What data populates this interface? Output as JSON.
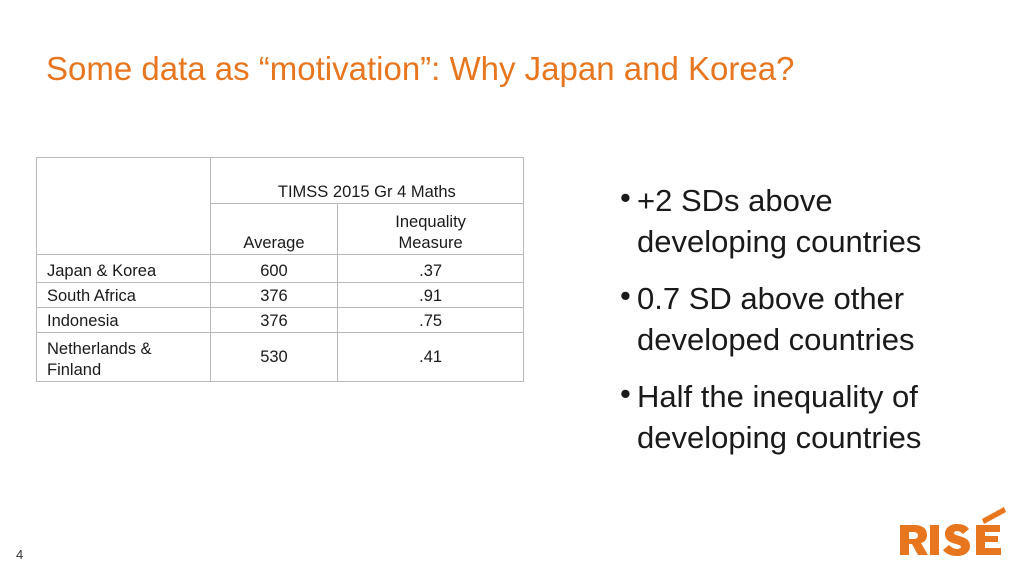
{
  "title": "Some data as “motivation”: Why Japan and Korea?",
  "table": {
    "group_header": "TIMSS 2015 Gr 4 Maths",
    "col_average": "Average",
    "col_inequality_line1": "Inequality",
    "col_inequality_line2": "Measure",
    "rows": [
      {
        "label": "Japan & Korea",
        "average": "600",
        "inequality": ".37"
      },
      {
        "label": "South Africa",
        "average": "376",
        "inequality": ".91"
      },
      {
        "label": "Indonesia",
        "average": "376",
        "inequality": ".75"
      },
      {
        "label_line1": "Netherlands &",
        "label_line2": "Finland",
        "average": "530",
        "inequality": ".41"
      }
    ]
  },
  "bullets": [
    {
      "line1": "+2 SDs above",
      "line2": "developing countries"
    },
    {
      "line1": "0.7 SD above other",
      "line2": "developed countries"
    },
    {
      "line1": "Half the inequality of",
      "line2": "developing countries"
    }
  ],
  "page_number": "4",
  "logo_text": "RISE",
  "colors": {
    "accent": "#e8761e",
    "text": "#1a1a1a",
    "border": "#b8b8b8"
  }
}
